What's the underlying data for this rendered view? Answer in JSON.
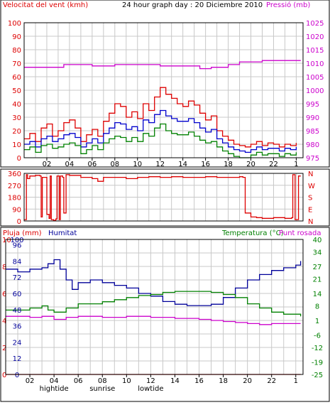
{
  "colors": {
    "wind": "#dd0000",
    "wind_avg": "#0000cc",
    "wind_min": "#008000",
    "pressure": "#cc00cc",
    "direction": "#dd0000",
    "rain": "#dd0000",
    "humidity": "#000099",
    "temperature": "#008000",
    "dewpoint": "#cc00cc"
  },
  "header": {
    "left": "Velocitat del vent (kmh)",
    "center": "24 hour graph day : 20 Diciembre 2010",
    "right": "Pressió (mb)"
  },
  "time_labels": [
    "02",
    "04",
    "06",
    "08",
    "10",
    "12",
    "14",
    "16",
    "18",
    "20",
    "22",
    "1"
  ],
  "event_labels": [
    {
      "text": "hightide",
      "hour": 4
    },
    {
      "text": "sunrise",
      "hour": 8
    },
    {
      "text": "lowtide",
      "hour": 12
    }
  ],
  "panel3_titles": {
    "rain": "Pluja (mm)",
    "humidity": "Humitat",
    "temperature": "Temperatura (°C)",
    "dewpoint": "Punt rosada"
  },
  "chart_data": [
    {
      "type": "line",
      "name": "wind_pressure",
      "x_unit": "hour",
      "xlim": [
        0,
        24.6
      ],
      "y_left_label": "Velocitat del vent (kmh)",
      "y_left_ticks": [
        0,
        10,
        20,
        30,
        40,
        50,
        60,
        70,
        80,
        90,
        100
      ],
      "ylim_left": [
        0,
        100
      ],
      "y_right_label": "Pressió (mb)",
      "y_right_ticks": [
        975,
        980,
        985,
        990,
        995,
        1000,
        1005,
        1010,
        1015,
        1020,
        1025
      ],
      "ylim_right": [
        975,
        1025
      ],
      "grid": true,
      "series": [
        {
          "name": "Wind gust",
          "axis": "left",
          "color": "#dd0000",
          "x": [
            0,
            0.5,
            1,
            1.5,
            2,
            2.5,
            3,
            3.5,
            4,
            4.5,
            5,
            5.5,
            6,
            6.5,
            7,
            7.5,
            8,
            8.5,
            9,
            9.5,
            10,
            10.5,
            11,
            11.5,
            12,
            12.5,
            13,
            13.5,
            14,
            14.5,
            15,
            15.5,
            16,
            16.5,
            17,
            17.5,
            18,
            18.5,
            19,
            19.5,
            20,
            20.5,
            21,
            21.5,
            22,
            22.5,
            23,
            23.5,
            24
          ],
          "y": [
            14,
            18,
            12,
            22,
            25,
            16,
            20,
            26,
            28,
            22,
            12,
            17,
            21,
            16,
            27,
            33,
            40,
            38,
            30,
            34,
            29,
            40,
            35,
            45,
            52,
            47,
            44,
            40,
            38,
            42,
            39,
            33,
            28,
            31,
            20,
            16,
            13,
            10,
            9,
            8,
            10,
            12,
            9,
            11,
            10,
            8,
            10,
            9,
            11
          ]
        },
        {
          "name": "Wind average",
          "axis": "left",
          "color": "#0000cc",
          "x": [
            0,
            0.5,
            1,
            1.5,
            2,
            2.5,
            3,
            3.5,
            4,
            4.5,
            5,
            5.5,
            6,
            6.5,
            7,
            7.5,
            8,
            8.5,
            9,
            9.5,
            10,
            10.5,
            11,
            11.5,
            12,
            12.5,
            13,
            13.5,
            14,
            14.5,
            15,
            15.5,
            16,
            16.5,
            17,
            17.5,
            18,
            18.5,
            19,
            19.5,
            20,
            20.5,
            21,
            21.5,
            22,
            22.5,
            23,
            23.5,
            24
          ],
          "y": [
            10,
            12,
            8,
            14,
            16,
            12,
            14,
            17,
            18,
            15,
            8,
            11,
            14,
            11,
            18,
            22,
            26,
            25,
            21,
            23,
            20,
            28,
            26,
            32,
            35,
            31,
            29,
            27,
            27,
            29,
            26,
            22,
            19,
            21,
            14,
            11,
            8,
            6,
            5,
            4,
            6,
            8,
            6,
            7,
            7,
            5,
            7,
            6,
            8
          ]
        },
        {
          "name": "Wind minimum",
          "axis": "left",
          "color": "#008000",
          "x": [
            0,
            0.5,
            1,
            1.5,
            2,
            2.5,
            3,
            3.5,
            4,
            4.5,
            5,
            5.5,
            6,
            6.5,
            7,
            7.5,
            8,
            8.5,
            9,
            9.5,
            10,
            10.5,
            11,
            11.5,
            12,
            12.5,
            13,
            13.5,
            14,
            14.5,
            15,
            15.5,
            16,
            16.5,
            17,
            17.5,
            18,
            18.5,
            19,
            19.5,
            20,
            20.5,
            21,
            21.5,
            22,
            22.5,
            23,
            23.5,
            24
          ],
          "y": [
            6,
            8,
            4,
            9,
            10,
            7,
            8,
            10,
            11,
            9,
            3,
            6,
            9,
            6,
            11,
            14,
            16,
            15,
            12,
            15,
            12,
            18,
            16,
            22,
            25,
            20,
            18,
            17,
            17,
            19,
            16,
            13,
            11,
            12,
            8,
            5,
            3,
            1,
            0,
            0,
            2,
            4,
            2,
            3,
            3,
            1,
            3,
            2,
            4
          ]
        },
        {
          "name": "Pressure",
          "axis": "right",
          "color": "#cc00cc",
          "x": [
            0,
            2,
            3.5,
            4.5,
            6,
            8,
            10,
            12,
            14,
            15.5,
            16.5,
            18,
            19,
            20,
            21,
            22,
            23,
            24.4
          ],
          "y": [
            1008.5,
            1008.5,
            1009.5,
            1009.5,
            1009,
            1009.5,
            1009.5,
            1009,
            1009,
            1008,
            1008.5,
            1009.5,
            1010.5,
            1010.5,
            1011,
            1011,
            1011,
            1011
          ]
        }
      ]
    },
    {
      "type": "line",
      "name": "wind_direction",
      "x_unit": "hour",
      "xlim": [
        0,
        24.6
      ],
      "y_left_ticks": [
        0,
        90,
        180,
        270,
        360
      ],
      "ylim_left": [
        0,
        360
      ],
      "y_right_ticks": [
        "N",
        "E",
        "S",
        "W",
        "N"
      ],
      "grid": true,
      "series": [
        {
          "name": "Direction",
          "color": "#dd0000",
          "x": [
            0,
            0.2,
            0.3,
            0.5,
            1,
            1.4,
            1.5,
            1.6,
            1.9,
            2,
            2.2,
            2.3,
            2.4,
            2.6,
            2.8,
            2.9,
            3.1,
            3.2,
            3.4,
            3.5,
            3.7,
            4,
            5,
            6,
            6.5,
            7,
            8,
            9,
            10,
            11,
            12,
            13,
            14,
            15,
            16,
            17,
            18,
            19,
            19.3,
            19.5,
            20,
            20.5,
            21,
            22,
            23,
            23.6,
            23.7,
            23.9,
            24.2,
            24.4
          ],
          "y": [
            10,
            350,
            320,
            340,
            345,
            340,
            30,
            330,
            330,
            50,
            20,
            340,
            10,
            5,
            15,
            340,
            10,
            340,
            330,
            60,
            350,
            345,
            330,
            320,
            300,
            330,
            330,
            320,
            330,
            335,
            330,
            335,
            330,
            330,
            335,
            330,
            330,
            335,
            330,
            60,
            30,
            25,
            20,
            25,
            20,
            25,
            350,
            10,
            340,
            340
          ]
        }
      ]
    },
    {
      "type": "line",
      "name": "rain_humidity_temp",
      "x_unit": "hour",
      "xlim": [
        0,
        24.6
      ],
      "y_left_label": "Pluja (mm)",
      "y_left_ticks": [
        0,
        2,
        4,
        6,
        8,
        10
      ],
      "ylim_left": [
        0,
        10
      ],
      "y_left2_label": "Humitat",
      "y_left2_ticks": [
        0,
        12,
        24,
        36,
        48,
        60,
        72,
        84,
        96,
        100
      ],
      "y_right_label": "Temperatura (°C)",
      "y_right_ticks": [
        -25,
        -19,
        -12,
        -6,
        1,
        8,
        14,
        21,
        27,
        34,
        40
      ],
      "ylim_right": [
        -25,
        40
      ],
      "grid": true,
      "series": [
        {
          "name": "Pluja (mm)",
          "axis": "left",
          "color": "#dd0000",
          "x": [
            0,
            24.4
          ],
          "y": [
            0,
            0
          ]
        },
        {
          "name": "Humitat",
          "axis": "left2",
          "color": "#000099",
          "x": [
            0,
            1,
            2,
            3,
            3.5,
            4,
            4.5,
            5,
            5.5,
            6,
            7,
            8,
            9,
            10,
            11,
            12,
            13,
            14,
            15,
            16,
            17,
            18,
            19,
            20,
            21,
            22,
            23,
            24,
            24.4
          ],
          "y": [
            78,
            76,
            78,
            79,
            82,
            85,
            78,
            70,
            63,
            68,
            70,
            68,
            66,
            64,
            60,
            58,
            54,
            52,
            51,
            51,
            52,
            57,
            64,
            70,
            74,
            77,
            79,
            81,
            84
          ]
        },
        {
          "name": "Temperatura",
          "axis": "right",
          "color": "#008000",
          "x": [
            0,
            1,
            2,
            3,
            3.5,
            4,
            5,
            6,
            7,
            8,
            9,
            10,
            11,
            12,
            13,
            14,
            15,
            16,
            17,
            18,
            19,
            20,
            21,
            22,
            23,
            24,
            24.4
          ],
          "y": [
            6,
            6,
            7,
            8,
            6,
            5,
            7,
            9,
            9,
            10,
            11,
            12,
            13,
            13.5,
            14.5,
            15,
            15,
            15,
            14.5,
            13.5,
            12,
            9,
            7,
            5,
            4,
            4,
            3
          ]
        },
        {
          "name": "Punt rosada",
          "axis": "right",
          "color": "#cc00cc",
          "x": [
            0,
            1,
            2,
            3,
            4,
            5,
            6,
            8,
            10,
            12,
            14,
            16,
            17,
            18,
            19,
            20,
            21,
            22,
            23,
            24,
            24.4
          ],
          "y": [
            3,
            3,
            2.5,
            3,
            1.5,
            2.5,
            3,
            2.5,
            3,
            2.5,
            2,
            1.5,
            1,
            0.5,
            0,
            -0.5,
            -1,
            -0.5,
            -0.5,
            -0.5,
            -0.5
          ]
        }
      ]
    }
  ]
}
